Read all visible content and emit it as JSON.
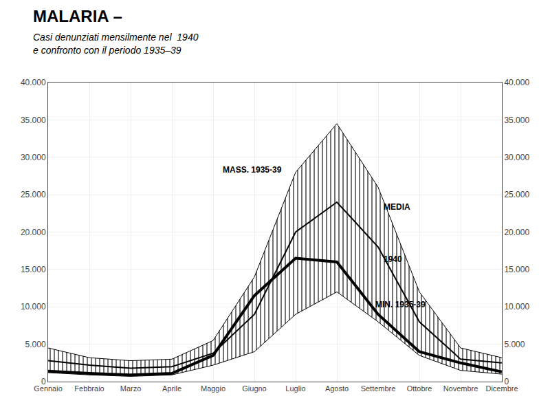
{
  "chart_data": {
    "type": "line",
    "title": "MALARIA –",
    "subtitle": [
      "Casi denunziati mensilmente nel  1940",
      "e confronto con il periodo 1935–39"
    ],
    "categories": [
      "Gennaio",
      "Febbraio",
      "Marzo",
      "Aprile",
      "Maggio",
      "Giugno",
      "Luglio",
      "Agosto",
      "Settembre",
      "Ottobre",
      "Novembre",
      "Dicembre"
    ],
    "series": [
      {
        "name": "MASS. 1935-39",
        "color": "#000000",
        "values": [
          4500,
          3200,
          2800,
          3000,
          5500,
          14000,
          28000,
          34500,
          26000,
          12000,
          4500,
          3200
        ]
      },
      {
        "name": "MEDIA",
        "color": "#000000",
        "values": [
          2800,
          2200,
          1800,
          2000,
          3800,
          9000,
          20000,
          24000,
          18000,
          8000,
          3000,
          2500
        ]
      },
      {
        "name": "MIN. 1935-39",
        "color": "#000000",
        "values": [
          1200,
          900,
          700,
          900,
          2200,
          4000,
          9000,
          12000,
          8000,
          3500,
          1500,
          1000
        ]
      },
      {
        "name": "1940",
        "color": "#000000",
        "values": [
          1400,
          1100,
          900,
          1100,
          3500,
          11500,
          16500,
          16000,
          9000,
          4000,
          2500,
          1300
        ]
      }
    ],
    "annotations": [
      {
        "text": "MASS. 1935-39",
        "x": 4.2,
        "y": 27500
      },
      {
        "text": "MEDIA",
        "x": 8.1,
        "y": 22500
      },
      {
        "text": "1940",
        "x": 8.1,
        "y": 15500
      },
      {
        "text": "MIN. 1935-39",
        "x": 7.9,
        "y": 9500
      }
    ],
    "ylim": [
      0,
      40000
    ],
    "yticks": [
      0,
      {
        "value": 5000,
        "label": "5.000"
      },
      {
        "value": 10000,
        "label": "10.000"
      },
      {
        "value": 15000,
        "label": "15.000"
      },
      {
        "value": 20000,
        "label": "20.000"
      },
      {
        "value": 25000,
        "label": "25.000"
      },
      {
        "value": 30000,
        "label": "30.000"
      },
      {
        "value": 35000,
        "label": "35.000"
      },
      {
        "value": 40000,
        "label": "40.000"
      }
    ],
    "y2lim": [
      0,
      40000
    ],
    "y2ticks": [
      0,
      {
        "value": 5000,
        "label": "5.000"
      },
      {
        "value": 10000,
        "label": "10.000"
      },
      {
        "value": 15000,
        "label": "15.000"
      },
      {
        "value": 20000,
        "label": "20.000"
      },
      {
        "value": 25000,
        "label": "25.000"
      },
      {
        "value": 30000,
        "label": "30.000"
      },
      {
        "value": 35000,
        "label": "35.000"
      },
      {
        "value": 40000,
        "label": "40.000"
      }
    ],
    "grid": true
  }
}
